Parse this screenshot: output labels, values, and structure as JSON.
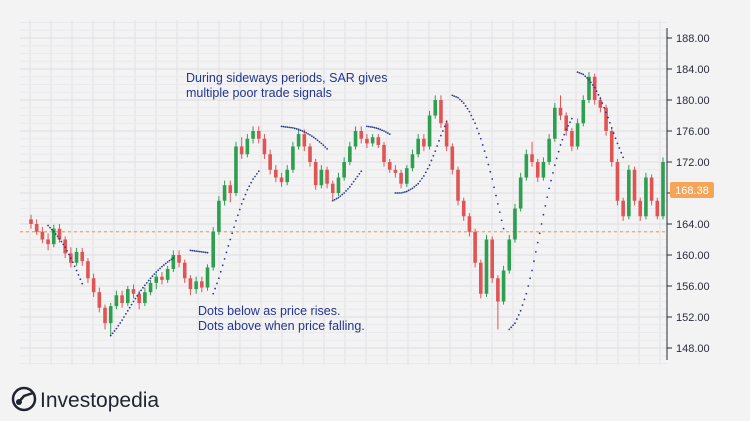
{
  "chart_data": {
    "type": "candlestick",
    "y_axis": {
      "position": "right",
      "range": [
        146,
        190
      ],
      "ticks": [
        "188.00",
        "184.00",
        "180.00",
        "176.00",
        "172.00",
        "168.00",
        "164.00",
        "160.00",
        "156.00",
        "152.00",
        "148.00"
      ]
    },
    "current_price": "168.38",
    "reference_level": 163,
    "colors": {
      "up": "#2e9e4f",
      "down": "#e05454",
      "sar": "#2b3a8f",
      "price_tag": "#f5a55a",
      "reference_line": "#f5a55a"
    },
    "grid": true,
    "candles": [
      {
        "o": 164.6,
        "h": 165.2,
        "l": 163.4,
        "c": 164.0
      },
      {
        "o": 164.0,
        "h": 164.6,
        "l": 162.6,
        "c": 163.0
      },
      {
        "o": 163.0,
        "h": 163.6,
        "l": 161.5,
        "c": 162.0
      },
      {
        "o": 162.0,
        "h": 162.8,
        "l": 160.6,
        "c": 161.4
      },
      {
        "o": 161.4,
        "h": 163.9,
        "l": 161.0,
        "c": 163.4
      },
      {
        "o": 163.4,
        "h": 164.0,
        "l": 161.6,
        "c": 162.0
      },
      {
        "o": 162.0,
        "h": 162.4,
        "l": 159.6,
        "c": 160.2
      },
      {
        "o": 160.2,
        "h": 161.0,
        "l": 158.4,
        "c": 159.0
      },
      {
        "o": 159.0,
        "h": 160.9,
        "l": 158.6,
        "c": 160.4
      },
      {
        "o": 160.4,
        "h": 160.9,
        "l": 158.6,
        "c": 159.2
      },
      {
        "o": 159.2,
        "h": 159.6,
        "l": 156.4,
        "c": 157.0
      },
      {
        "o": 157.0,
        "h": 157.6,
        "l": 154.6,
        "c": 155.2
      },
      {
        "o": 155.2,
        "h": 155.8,
        "l": 152.6,
        "c": 153.2
      },
      {
        "o": 153.2,
        "h": 153.6,
        "l": 150.4,
        "c": 151.2
      },
      {
        "o": 151.2,
        "h": 153.8,
        "l": 149.6,
        "c": 153.4
      },
      {
        "o": 153.4,
        "h": 155.4,
        "l": 153.0,
        "c": 154.8
      },
      {
        "o": 154.8,
        "h": 155.4,
        "l": 153.2,
        "c": 153.8
      },
      {
        "o": 153.8,
        "h": 156.0,
        "l": 153.4,
        "c": 155.6
      },
      {
        "o": 155.6,
        "h": 156.2,
        "l": 154.4,
        "c": 155.0
      },
      {
        "o": 155.0,
        "h": 155.4,
        "l": 153.0,
        "c": 153.8
      },
      {
        "o": 153.8,
        "h": 155.8,
        "l": 153.4,
        "c": 155.2
      },
      {
        "o": 155.2,
        "h": 156.8,
        "l": 154.8,
        "c": 156.4
      },
      {
        "o": 156.4,
        "h": 157.6,
        "l": 155.6,
        "c": 157.2
      },
      {
        "o": 157.2,
        "h": 157.8,
        "l": 156.2,
        "c": 156.8
      },
      {
        "o": 156.8,
        "h": 158.6,
        "l": 156.4,
        "c": 158.2
      },
      {
        "o": 158.2,
        "h": 160.6,
        "l": 157.8,
        "c": 160.0
      },
      {
        "o": 160.0,
        "h": 160.6,
        "l": 158.4,
        "c": 159.0
      },
      {
        "o": 159.0,
        "h": 159.4,
        "l": 156.4,
        "c": 157.0
      },
      {
        "o": 157.0,
        "h": 157.4,
        "l": 154.8,
        "c": 155.6
      },
      {
        "o": 155.6,
        "h": 157.2,
        "l": 155.0,
        "c": 156.6
      },
      {
        "o": 156.6,
        "h": 157.2,
        "l": 155.2,
        "c": 155.8
      },
      {
        "o": 155.8,
        "h": 158.8,
        "l": 155.4,
        "c": 158.4
      },
      {
        "o": 158.4,
        "h": 163.6,
        "l": 158.0,
        "c": 163.0
      },
      {
        "o": 163.0,
        "h": 167.6,
        "l": 162.6,
        "c": 167.0
      },
      {
        "o": 167.0,
        "h": 169.6,
        "l": 166.4,
        "c": 169.0
      },
      {
        "o": 169.0,
        "h": 169.6,
        "l": 166.8,
        "c": 168.0
      },
      {
        "o": 168.0,
        "h": 174.6,
        "l": 167.6,
        "c": 174.0
      },
      {
        "o": 174.0,
        "h": 175.2,
        "l": 172.4,
        "c": 173.0
      },
      {
        "o": 173.0,
        "h": 175.6,
        "l": 172.6,
        "c": 175.0
      },
      {
        "o": 175.0,
        "h": 176.6,
        "l": 174.4,
        "c": 176.0
      },
      {
        "o": 176.0,
        "h": 176.6,
        "l": 174.4,
        "c": 175.0
      },
      {
        "o": 175.0,
        "h": 175.6,
        "l": 172.4,
        "c": 173.0
      },
      {
        "o": 173.0,
        "h": 173.6,
        "l": 170.4,
        "c": 171.0
      },
      {
        "o": 171.0,
        "h": 171.6,
        "l": 169.4,
        "c": 170.0
      },
      {
        "o": 170.0,
        "h": 170.6,
        "l": 168.8,
        "c": 169.4
      },
      {
        "o": 169.4,
        "h": 171.6,
        "l": 169.0,
        "c": 171.0
      },
      {
        "o": 171.0,
        "h": 174.6,
        "l": 170.6,
        "c": 174.0
      },
      {
        "o": 174.0,
        "h": 176.2,
        "l": 173.6,
        "c": 175.6
      },
      {
        "o": 175.6,
        "h": 176.2,
        "l": 173.4,
        "c": 174.0
      },
      {
        "o": 174.0,
        "h": 174.4,
        "l": 171.4,
        "c": 172.0
      },
      {
        "o": 172.0,
        "h": 172.4,
        "l": 168.4,
        "c": 169.0
      },
      {
        "o": 169.0,
        "h": 171.6,
        "l": 168.6,
        "c": 171.0
      },
      {
        "o": 171.0,
        "h": 171.4,
        "l": 168.6,
        "c": 169.2
      },
      {
        "o": 169.2,
        "h": 169.6,
        "l": 167.0,
        "c": 168.0
      },
      {
        "o": 168.0,
        "h": 170.6,
        "l": 167.6,
        "c": 170.0
      },
      {
        "o": 170.0,
        "h": 172.6,
        "l": 169.6,
        "c": 172.0
      },
      {
        "o": 172.0,
        "h": 174.6,
        "l": 171.6,
        "c": 174.0
      },
      {
        "o": 174.0,
        "h": 176.6,
        "l": 173.6,
        "c": 176.0
      },
      {
        "o": 176.0,
        "h": 176.6,
        "l": 174.4,
        "c": 175.0
      },
      {
        "o": 175.0,
        "h": 175.6,
        "l": 173.8,
        "c": 174.4
      },
      {
        "o": 174.4,
        "h": 175.6,
        "l": 174.0,
        "c": 175.2
      },
      {
        "o": 175.2,
        "h": 175.6,
        "l": 173.8,
        "c": 174.2
      },
      {
        "o": 174.2,
        "h": 174.6,
        "l": 171.4,
        "c": 172.0
      },
      {
        "o": 172.0,
        "h": 172.4,
        "l": 170.6,
        "c": 171.0
      },
      {
        "o": 171.0,
        "h": 171.6,
        "l": 170.0,
        "c": 170.6
      },
      {
        "o": 170.6,
        "h": 171.0,
        "l": 168.6,
        "c": 169.2
      },
      {
        "o": 169.2,
        "h": 171.6,
        "l": 168.8,
        "c": 171.2
      },
      {
        "o": 171.2,
        "h": 173.6,
        "l": 170.8,
        "c": 173.0
      },
      {
        "o": 173.0,
        "h": 175.6,
        "l": 172.6,
        "c": 175.0
      },
      {
        "o": 175.0,
        "h": 175.6,
        "l": 173.4,
        "c": 174.0
      },
      {
        "o": 174.0,
        "h": 178.6,
        "l": 173.6,
        "c": 178.0
      },
      {
        "o": 178.0,
        "h": 180.6,
        "l": 177.6,
        "c": 180.0
      },
      {
        "o": 180.0,
        "h": 180.6,
        "l": 176.4,
        "c": 177.0
      },
      {
        "o": 177.0,
        "h": 177.4,
        "l": 173.4,
        "c": 174.0
      },
      {
        "o": 174.0,
        "h": 174.4,
        "l": 170.4,
        "c": 171.0
      },
      {
        "o": 171.0,
        "h": 171.4,
        "l": 166.4,
        "c": 167.0
      },
      {
        "o": 167.0,
        "h": 167.4,
        "l": 164.4,
        "c": 165.0
      },
      {
        "o": 165.0,
        "h": 165.4,
        "l": 162.4,
        "c": 163.0
      },
      {
        "o": 163.0,
        "h": 163.4,
        "l": 158.4,
        "c": 159.0
      },
      {
        "o": 159.0,
        "h": 159.4,
        "l": 154.4,
        "c": 155.0
      },
      {
        "o": 155.0,
        "h": 162.6,
        "l": 154.6,
        "c": 162.0
      },
      {
        "o": 162.0,
        "h": 162.4,
        "l": 156.4,
        "c": 157.0
      },
      {
        "o": 157.0,
        "h": 157.4,
        "l": 150.4,
        "c": 154.0
      },
      {
        "o": 154.0,
        "h": 158.6,
        "l": 153.6,
        "c": 158.0
      },
      {
        "o": 158.0,
        "h": 162.6,
        "l": 157.6,
        "c": 162.0
      },
      {
        "o": 162.0,
        "h": 166.6,
        "l": 161.6,
        "c": 166.0
      },
      {
        "o": 166.0,
        "h": 170.6,
        "l": 165.6,
        "c": 170.0
      },
      {
        "o": 170.0,
        "h": 173.6,
        "l": 169.6,
        "c": 173.0
      },
      {
        "o": 173.0,
        "h": 174.6,
        "l": 171.4,
        "c": 172.0
      },
      {
        "o": 172.0,
        "h": 172.4,
        "l": 169.4,
        "c": 170.0
      },
      {
        "o": 170.0,
        "h": 172.6,
        "l": 169.6,
        "c": 172.0
      },
      {
        "o": 172.0,
        "h": 175.6,
        "l": 171.6,
        "c": 175.0
      },
      {
        "o": 175.0,
        "h": 179.6,
        "l": 174.6,
        "c": 179.0
      },
      {
        "o": 179.0,
        "h": 180.6,
        "l": 177.4,
        "c": 178.0
      },
      {
        "o": 178.0,
        "h": 178.4,
        "l": 175.4,
        "c": 176.0
      },
      {
        "o": 176.0,
        "h": 176.4,
        "l": 173.4,
        "c": 174.0
      },
      {
        "o": 174.0,
        "h": 177.6,
        "l": 173.6,
        "c": 177.0
      },
      {
        "o": 177.0,
        "h": 180.6,
        "l": 176.6,
        "c": 180.0
      },
      {
        "o": 180.0,
        "h": 183.6,
        "l": 179.6,
        "c": 183.0
      },
      {
        "o": 183.0,
        "h": 183.4,
        "l": 179.4,
        "c": 180.0
      },
      {
        "o": 180.0,
        "h": 180.4,
        "l": 178.4,
        "c": 179.0
      },
      {
        "o": 179.0,
        "h": 179.4,
        "l": 175.4,
        "c": 176.0
      },
      {
        "o": 176.0,
        "h": 176.4,
        "l": 171.4,
        "c": 172.0
      },
      {
        "o": 172.0,
        "h": 172.4,
        "l": 166.4,
        "c": 167.0
      },
      {
        "o": 167.0,
        "h": 167.4,
        "l": 164.4,
        "c": 165.0
      },
      {
        "o": 165.0,
        "h": 171.6,
        "l": 164.6,
        "c": 171.0
      },
      {
        "o": 171.0,
        "h": 171.4,
        "l": 166.4,
        "c": 167.0
      },
      {
        "o": 167.0,
        "h": 167.4,
        "l": 164.4,
        "c": 165.0
      },
      {
        "o": 165.0,
        "h": 170.6,
        "l": 164.6,
        "c": 170.0
      },
      {
        "o": 170.0,
        "h": 170.4,
        "l": 166.4,
        "c": 167.0
      },
      {
        "o": 167.0,
        "h": 167.4,
        "l": 164.6,
        "c": 165.0
      },
      {
        "o": 165.0,
        "h": 172.6,
        "l": 164.6,
        "c": 172.0
      }
    ],
    "sar_segments": [
      {
        "position": "above",
        "points": [
          [
            163.8,
            0
          ],
          [
            163.0,
            0
          ],
          [
            162.1,
            0
          ],
          [
            161.0,
            0
          ],
          [
            159.6,
            0
          ],
          [
            158.0,
            0
          ],
          [
            156.3,
            0
          ]
        ],
        "start": 3
      },
      {
        "position": "below",
        "points": [],
        "start": 14,
        "values": [
          149.6,
          150.5,
          151.6,
          152.8,
          154.0,
          155.1,
          156.1,
          157.0,
          157.8,
          158.5,
          159.1,
          159.6
        ]
      },
      {
        "position": "above",
        "start": 28,
        "values": [
          160.6,
          160.5,
          160.4,
          160.3
        ]
      },
      {
        "position": "below",
        "start": 32,
        "values": [
          155.0,
          157.0,
          159.5,
          162.0,
          164.4,
          166.6,
          168.4,
          169.8,
          170.8
        ]
      },
      {
        "position": "above",
        "start": 44,
        "values": [
          176.6,
          176.5,
          176.4,
          176.2,
          175.9,
          175.5,
          175.0,
          174.4,
          173.7
        ]
      },
      {
        "position": "below",
        "start": 53,
        "values": [
          167.0,
          167.4,
          168.0,
          168.8,
          169.8,
          170.8
        ]
      },
      {
        "position": "above",
        "start": 59,
        "values": [
          176.6,
          176.5,
          176.3,
          176.0,
          175.6
        ]
      },
      {
        "position": "below",
        "start": 64,
        "values": [
          168.0,
          168.0,
          168.2,
          168.6,
          169.2,
          170.2,
          171.6,
          173.4,
          175.4,
          177.2
        ]
      },
      {
        "position": "above",
        "start": 74,
        "values": [
          180.6,
          180.3,
          179.6,
          178.5,
          177.0,
          175.0,
          172.6,
          169.8,
          166.6,
          163.4
        ]
      },
      {
        "position": "below",
        "start": 84,
        "values": [
          150.4,
          151.2,
          152.8,
          155.0,
          158.0,
          161.6,
          165.2,
          168.6,
          171.6,
          174.2,
          176.2,
          177.6
        ]
      },
      {
        "position": "above",
        "start": 96,
        "values": [
          183.6,
          183.3,
          182.6,
          181.6,
          180.2,
          178.4,
          176.4,
          174.4,
          172.6
        ]
      }
    ],
    "annotations": [
      {
        "lines": [
          "During sideways periods, SAR gives",
          "multiple poor trade signals"
        ]
      },
      {
        "lines": [
          "Dots below as price rises.",
          "Dots above when price falling."
        ]
      }
    ]
  },
  "brand": {
    "name": "Investopedia",
    "icon": "investopedia-logo-icon"
  }
}
